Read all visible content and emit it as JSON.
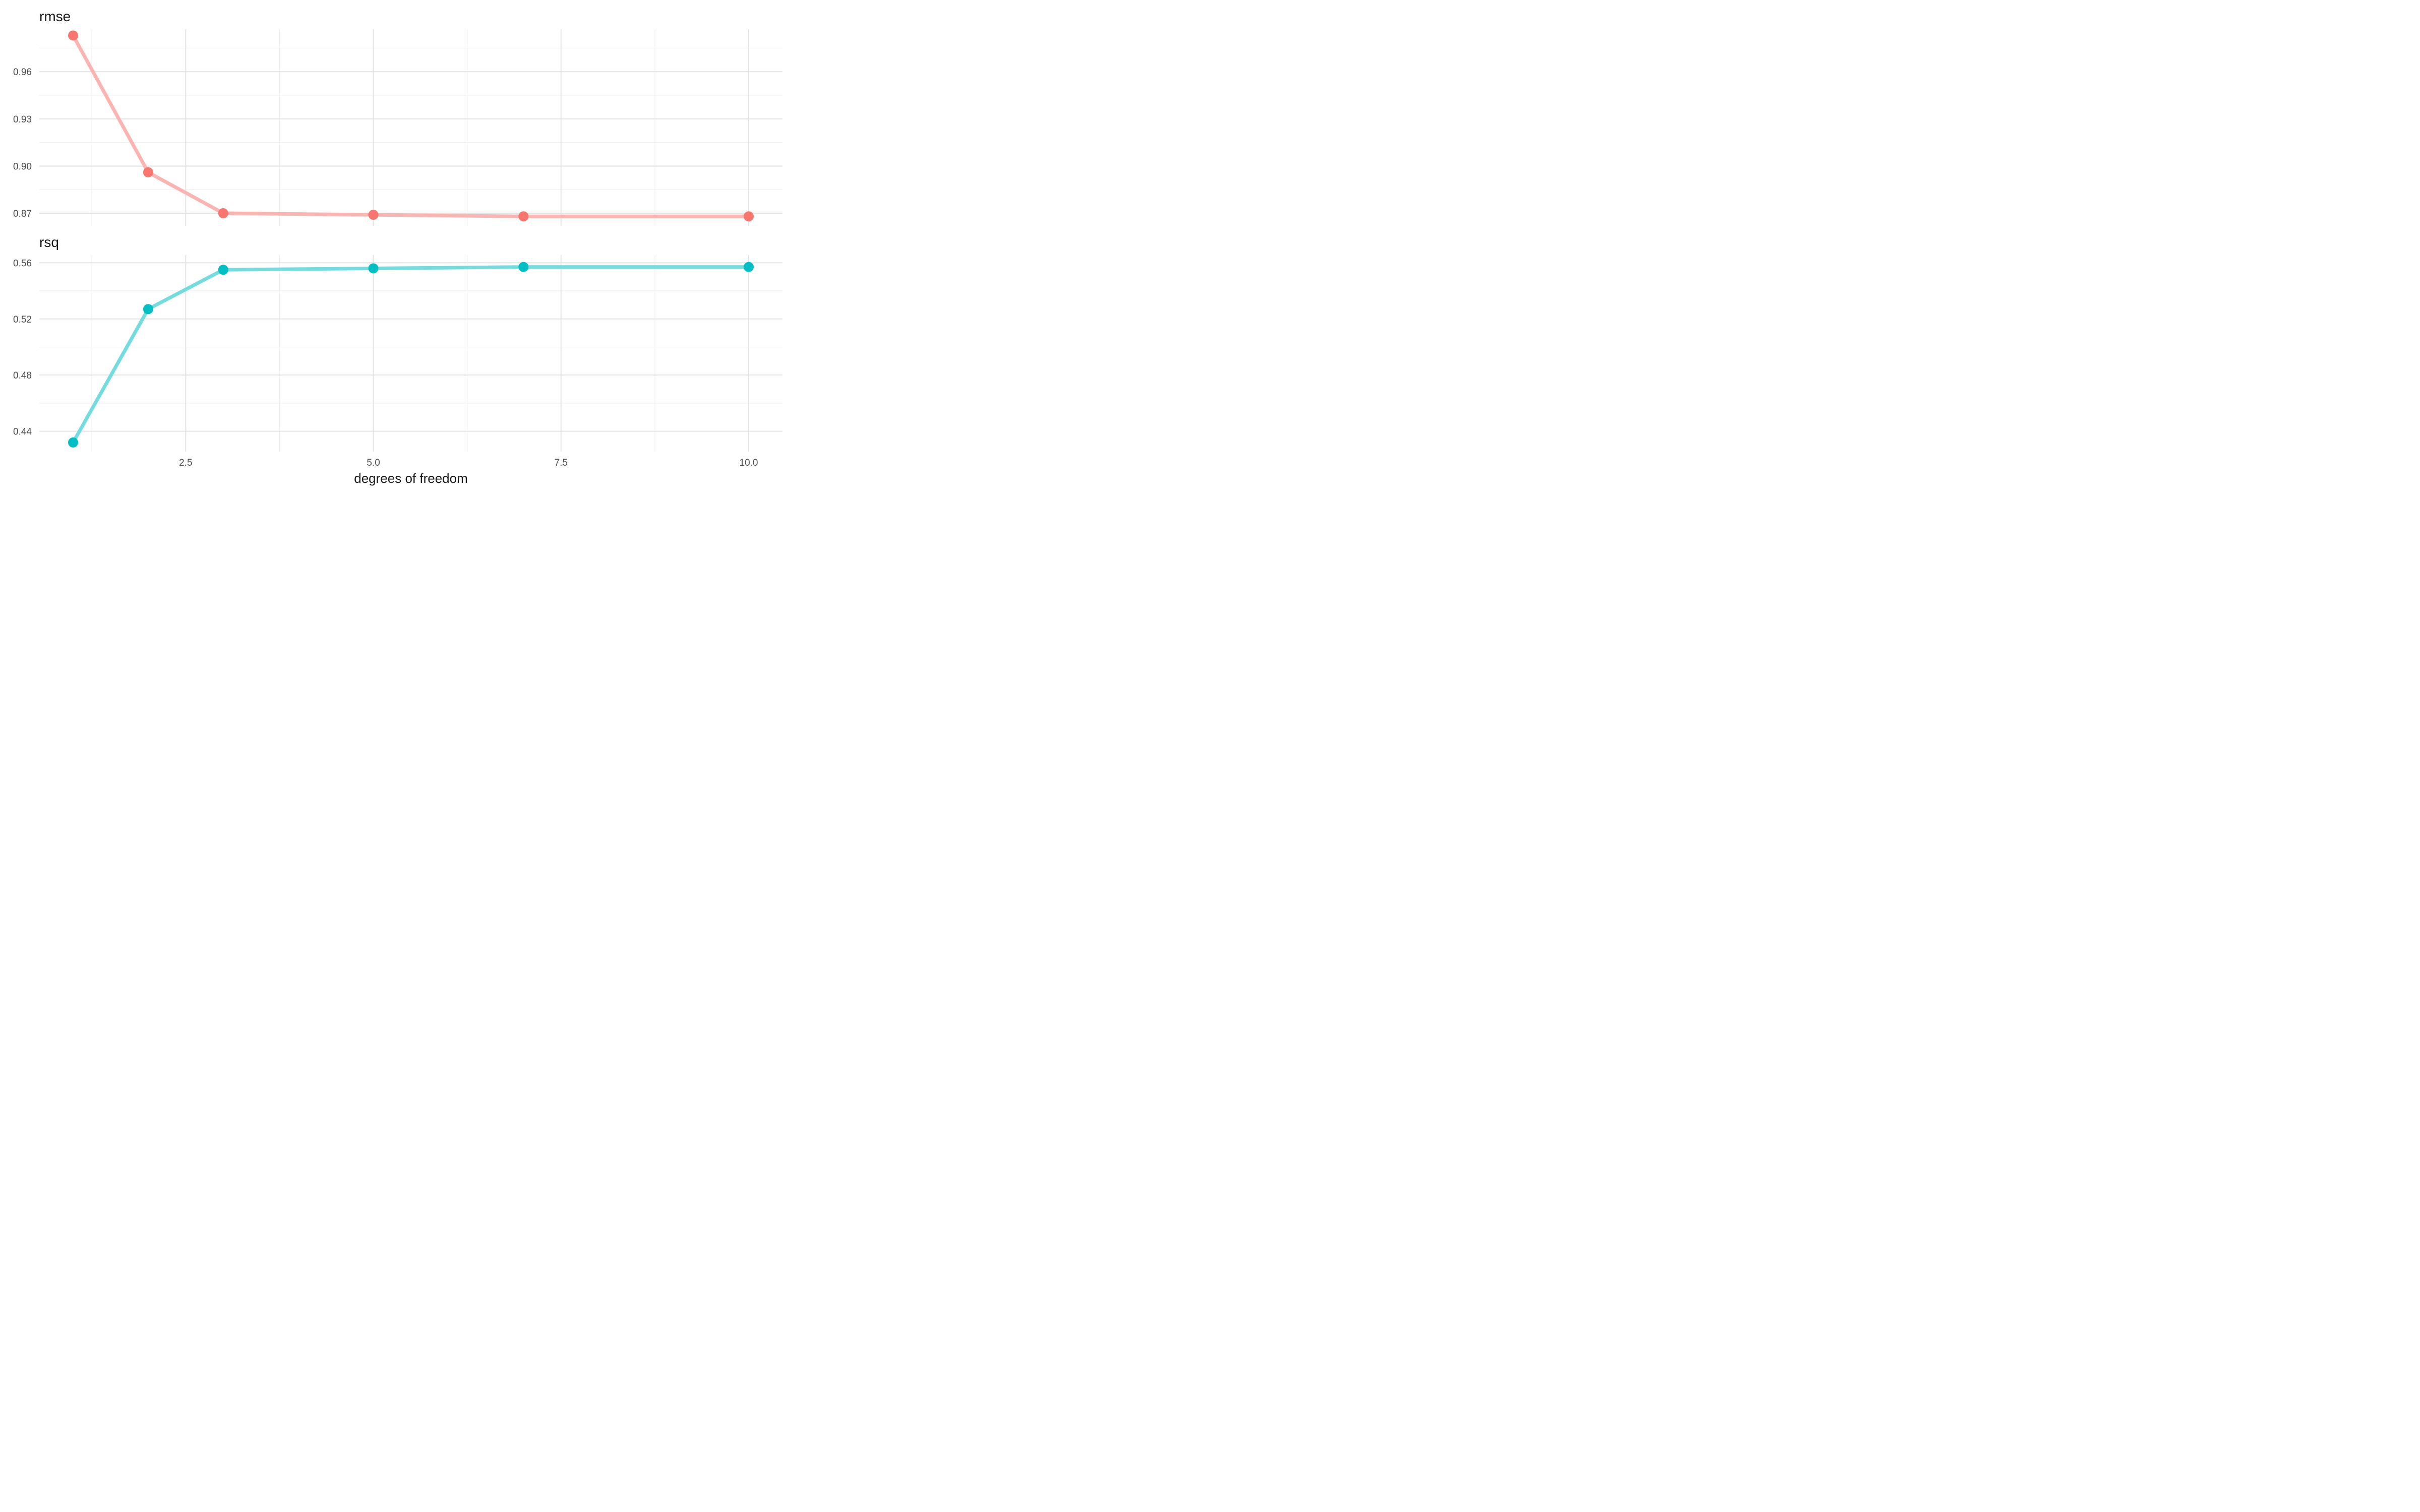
{
  "chart_data": {
    "type": "line",
    "xlabel": "degrees of freedom",
    "x_ticks": [
      "2.5",
      "5.0",
      "7.5",
      "10.0"
    ],
    "xlim": [
      0.55,
      10.45
    ],
    "grid": true,
    "legend": "none",
    "facets": [
      {
        "id": "rmse",
        "title": "rmse",
        "color": "#F8766D",
        "y_ticks": [
          "0.87",
          "0.90",
          "0.93",
          "0.96"
        ],
        "ylim": [
          0.862,
          0.987
        ],
        "x": [
          1,
          2,
          3,
          5,
          7,
          10
        ],
        "values": [
          0.983,
          0.896,
          0.87,
          0.869,
          0.868,
          0.868
        ]
      },
      {
        "id": "rsq",
        "title": "rsq",
        "color": "#00BFC4",
        "y_ticks": [
          "0.44",
          "0.48",
          "0.52",
          "0.56"
        ],
        "ylim": [
          0.4255,
          0.5655
        ],
        "x": [
          1,
          2,
          3,
          5,
          7,
          10
        ],
        "values": [
          0.432,
          0.527,
          0.555,
          0.556,
          0.557,
          0.557
        ]
      }
    ]
  }
}
